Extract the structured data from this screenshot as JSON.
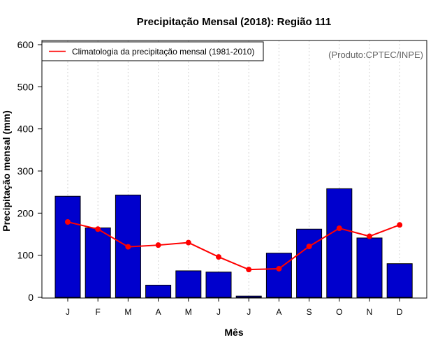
{
  "chart_data": {
    "type": "bar",
    "title": "Precipitação Mensal (2018): Região 111",
    "xlabel": "Mês",
    "ylabel": "Precipitação mensal (mm)",
    "source_note": "(Produto:CPTEC/INPE)",
    "categories": [
      "J",
      "F",
      "M",
      "A",
      "M",
      "J",
      "J",
      "A",
      "S",
      "O",
      "N",
      "D"
    ],
    "ylim": [
      0,
      600
    ],
    "yticks": [
      0,
      100,
      200,
      300,
      400,
      500,
      600
    ],
    "grid": "vertical dotted",
    "legend_position": "top-left",
    "series": [
      {
        "name": "Precipitação mensal 2018",
        "kind": "bar",
        "color": "#0000cd",
        "values": [
          240,
          165,
          243,
          29,
          63,
          60,
          3,
          105,
          162,
          258,
          141,
          80
        ]
      },
      {
        "name": "Climatologia da precipitação mensal (1981-2010)",
        "kind": "line",
        "color": "#ff0000",
        "values": [
          179,
          162,
          120,
          124,
          130,
          96,
          66,
          68,
          121,
          164,
          145,
          172
        ]
      }
    ]
  }
}
